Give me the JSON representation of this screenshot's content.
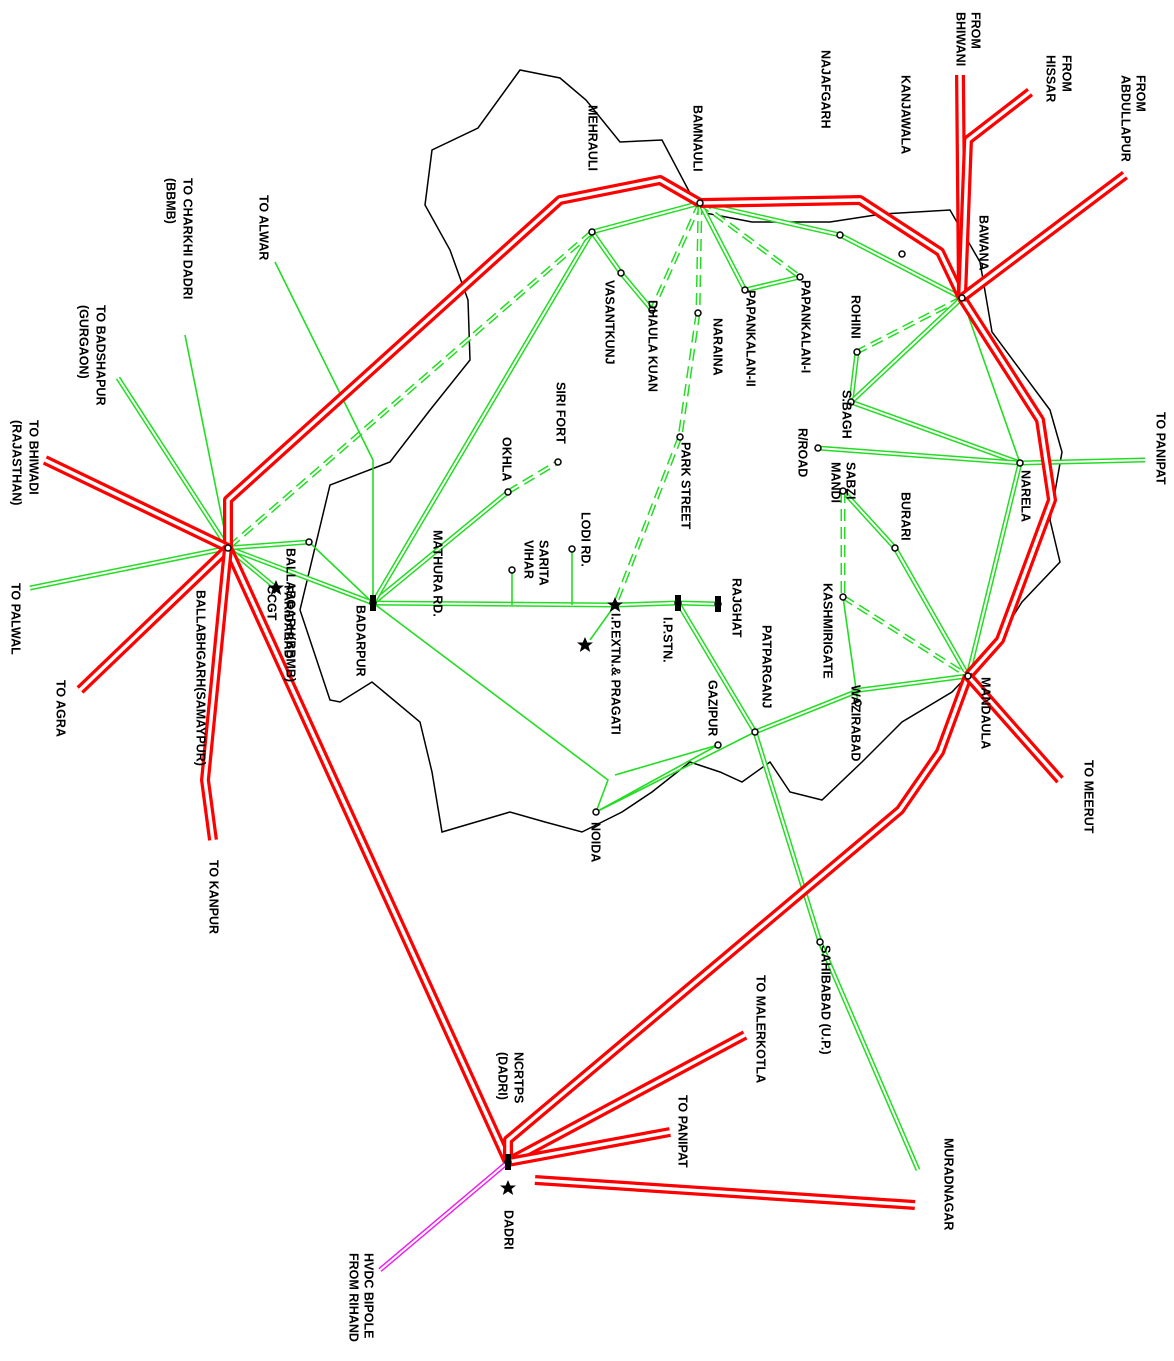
{
  "nodes": [
    {
      "label": [
        "FROM",
        "BHIWANI"
      ]
    },
    {
      "label": [
        "FROM",
        "HISSAR"
      ]
    },
    {
      "label": [
        "FROM",
        "ABDULLAPUR"
      ]
    },
    {
      "label": [
        "NAJAFGARH"
      ]
    },
    {
      "label": [
        "KANJAWALA"
      ]
    },
    {
      "label": [
        "BAMNAULI"
      ]
    },
    {
      "label": [
        "MEHRAULI"
      ]
    },
    {
      "label": [
        "BAWANA"
      ]
    },
    {
      "label": [
        "TO ALWAR"
      ]
    },
    {
      "label": [
        "TO CHARKHI DADRI",
        "(BBMB)"
      ]
    },
    {
      "label": [
        "TO BADSHAPUR",
        "(GURGAON)"
      ]
    },
    {
      "label": [
        "TO BHIWADI",
        "(RAJASTHAN)"
      ]
    },
    {
      "label": [
        "TO PALWAL"
      ]
    },
    {
      "label": [
        "TO AGRA"
      ]
    },
    {
      "label": [
        "BALLABHGARH(SAMAYPUR)"
      ]
    },
    {
      "label": [
        "TO KANPUR"
      ]
    },
    {
      "label": [
        "BALLABGARH(BBMB)"
      ]
    },
    {
      "label": [
        "FARIDABAD",
        "CCGT"
      ]
    },
    {
      "label": [
        "BADARPUR"
      ]
    },
    {
      "label": [
        "MATHURA RD."
      ]
    },
    {
      "label": [
        "OKHLA"
      ]
    },
    {
      "label": [
        "SIRI FORT"
      ]
    },
    {
      "label": [
        "SARITA",
        "VIHAR"
      ]
    },
    {
      "label": [
        "LODI RD."
      ]
    },
    {
      "label": [
        "VASANTKUNJ"
      ]
    },
    {
      "label": [
        "DHAULA KUAN"
      ]
    },
    {
      "label": [
        "NARAINA"
      ]
    },
    {
      "label": [
        "PAPANKALAN-II"
      ]
    },
    {
      "label": [
        "PAPANKALAN-I"
      ]
    },
    {
      "label": [
        "ROHINI"
      ]
    },
    {
      "label": [
        "S.BAGH"
      ]
    },
    {
      "label": [
        "R/ROAD"
      ]
    },
    {
      "label": [
        "SABZI",
        "MANDI"
      ]
    },
    {
      "label": [
        "BURARI"
      ]
    },
    {
      "label": [
        "KASHMIRIGATE"
      ]
    },
    {
      "label": [
        "NARELA"
      ]
    },
    {
      "label": [
        "TO PANIPAT"
      ]
    },
    {
      "label": [
        "PARK STREET"
      ]
    },
    {
      "label": [
        "RAJGHAT"
      ]
    },
    {
      "label": [
        "PATPARGANJ"
      ]
    },
    {
      "label": [
        "I.P.STN."
      ]
    },
    {
      "label": [
        "I.P.EXTN.& PRAGATI"
      ]
    },
    {
      "label": [
        "GAZIPUR"
      ]
    },
    {
      "label": [
        "WAZIRABAD"
      ]
    },
    {
      "label": [
        "MANDAULA"
      ]
    },
    {
      "label": [
        "TO MEERUT"
      ]
    },
    {
      "label": [
        "NOIDA"
      ]
    },
    {
      "label": [
        "SAHIBABAD (U.P.)"
      ]
    },
    {
      "label": [
        "TO MALERKOTLA"
      ]
    },
    {
      "label": [
        "TO PANIPAT"
      ]
    },
    {
      "label": [
        "NCRTPS",
        "(DADRI)"
      ]
    },
    {
      "label": [
        "MURADNAGAR"
      ]
    },
    {
      "label": [
        "DADRI"
      ]
    },
    {
      "label": [
        "HVDC BIPOLE",
        "FROM RIHAND"
      ]
    }
  ]
}
